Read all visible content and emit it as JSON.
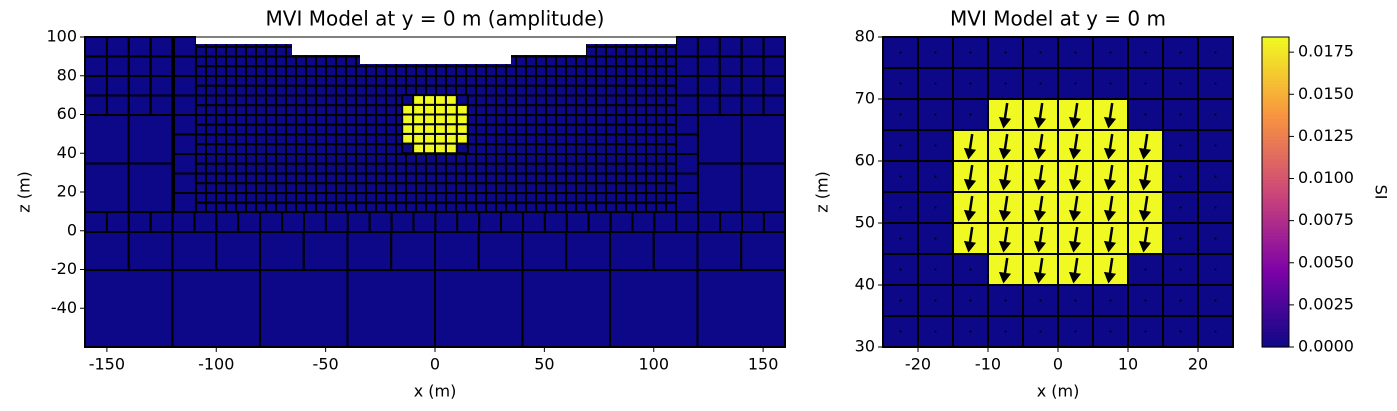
{
  "chart_data": [
    {
      "type": "mesh",
      "title": "MVI Model at y = 0 m (amplitude)",
      "xlabel": "x (m)",
      "ylabel": "z (m)",
      "xlim": [
        -160,
        160
      ],
      "ylim": [
        -60,
        100
      ],
      "xticks": [
        -150,
        -100,
        -50,
        0,
        50,
        100,
        150
      ],
      "yticks": [
        -40,
        -20,
        0,
        20,
        40,
        60,
        80,
        100
      ],
      "x_edges": [
        -15,
        -10,
        -5,
        0,
        5,
        10,
        15
      ],
      "z_edges": [
        40,
        45,
        50,
        55,
        60,
        65,
        70
      ],
      "values": [
        [
          0,
          0.0184,
          0.0184,
          0.0184,
          0.0184,
          0
        ],
        [
          0.0184,
          0.0184,
          0.0184,
          0.0184,
          0.0184,
          0.0184
        ],
        [
          0.0184,
          0.0184,
          0.0184,
          0.0184,
          0.0184,
          0.0184
        ],
        [
          0.0184,
          0.0184,
          0.0184,
          0.0184,
          0.0184,
          0.0184
        ],
        [
          0.0184,
          0.0184,
          0.0184,
          0.0184,
          0.0184,
          0.0184
        ],
        [
          0,
          0.0184,
          0.0184,
          0.0184,
          0.0184,
          0
        ]
      ]
    },
    {
      "type": "vector_mesh",
      "title": "MVI Model at y = 0 m",
      "xlabel": "x (m)",
      "ylabel": "z (m)",
      "xlim": [
        -25,
        25
      ],
      "ylim": [
        30,
        80
      ],
      "xticks": [
        -20,
        -10,
        0,
        10,
        20
      ],
      "yticks": [
        30,
        40,
        50,
        60,
        70,
        80
      ],
      "x_edges": [
        -25,
        -20,
        -15,
        -10,
        -5,
        0,
        5,
        10,
        15,
        20,
        25
      ],
      "z_edges": [
        30,
        35,
        40,
        45,
        50,
        55,
        60,
        65,
        70,
        75,
        80
      ],
      "vector": {
        "x": -0.15,
        "z": -1
      },
      "values": [
        [
          0,
          0,
          0,
          0,
          0,
          0,
          0,
          0,
          0,
          0
        ],
        [
          0,
          0,
          0,
          0,
          0,
          0,
          0,
          0,
          0,
          0
        ],
        [
          0,
          0,
          0,
          0.0184,
          0.0184,
          0.0184,
          0.0184,
          0,
          0,
          0
        ],
        [
          0,
          0,
          0.0184,
          0.0184,
          0.0184,
          0.0184,
          0.0184,
          0.0184,
          0,
          0
        ],
        [
          0,
          0,
          0.0184,
          0.0184,
          0.0184,
          0.0184,
          0.0184,
          0.0184,
          0,
          0
        ],
        [
          0,
          0,
          0.0184,
          0.0184,
          0.0184,
          0.0184,
          0.0184,
          0.0184,
          0,
          0
        ],
        [
          0,
          0,
          0.0184,
          0.0184,
          0.0184,
          0.0184,
          0.0184,
          0.0184,
          0,
          0
        ],
        [
          0,
          0,
          0,
          0.0184,
          0.0184,
          0.0184,
          0.0184,
          0,
          0,
          0
        ],
        [
          0,
          0,
          0,
          0,
          0,
          0,
          0,
          0,
          0,
          0
        ],
        [
          0,
          0,
          0,
          0,
          0,
          0,
          0,
          0,
          0,
          0
        ]
      ]
    },
    {
      "type": "colorbar",
      "label": "SI",
      "clim": [
        0,
        0.0184
      ],
      "colormap": [
        "#0d0887",
        "#7e03a8",
        "#cc4778",
        "#f89540",
        "#f0f921"
      ],
      "ticks": [
        {
          "value": 0,
          "label": "0.0000"
        },
        {
          "value": 0.0025,
          "label": "0.0025"
        },
        {
          "value": 0.005,
          "label": "0.0050"
        },
        {
          "value": 0.0075,
          "label": "0.0075"
        },
        {
          "value": 0.01,
          "label": "0.0100"
        },
        {
          "value": 0.0125,
          "label": "0.0125"
        },
        {
          "value": 0.015,
          "label": "0.0150"
        },
        {
          "value": 0.0175,
          "label": "0.0175"
        }
      ]
    }
  ]
}
